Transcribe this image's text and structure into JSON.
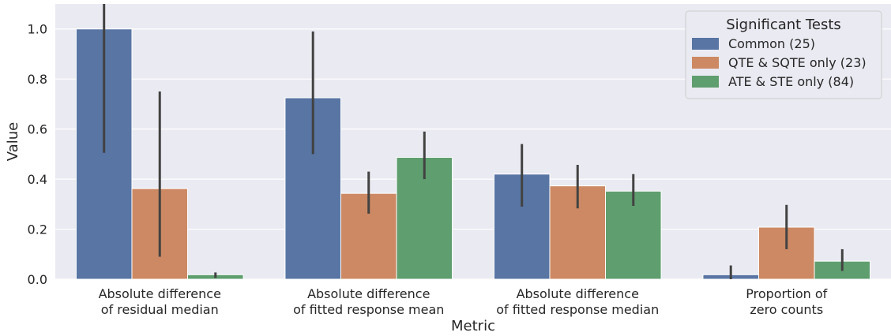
{
  "chart_data": {
    "type": "bar",
    "xlabel": "Metric",
    "ylabel": "Value",
    "ylim": [
      0,
      1.1
    ],
    "yticks": [
      0.0,
      0.2,
      0.4,
      0.6,
      0.8,
      1.0
    ],
    "ytick_labels": [
      "0.0",
      "0.2",
      "0.4",
      "0.6",
      "0.8",
      "1.0"
    ],
    "grid": true,
    "categories": [
      [
        "Absolute difference",
        "of residual median"
      ],
      [
        "Absolute difference",
        "of fitted response mean"
      ],
      [
        "Absolute difference",
        "of fitted response median"
      ],
      [
        "Proportion of",
        "zero counts"
      ]
    ],
    "series": [
      {
        "name": "Common (25)",
        "color": "#5875a4",
        "values": [
          1.0,
          0.725,
          0.42,
          0.018
        ],
        "error_low": [
          0.505,
          0.5,
          0.29,
          0.0
        ],
        "error_high": [
          1.1,
          0.99,
          0.54,
          0.055
        ]
      },
      {
        "name": "QTE & SQTE only (23)",
        "color": "#cc8963",
        "values": [
          0.362,
          0.343,
          0.373,
          0.208
        ],
        "error_low": [
          0.09,
          0.262,
          0.283,
          0.12
        ],
        "error_high": [
          0.75,
          0.43,
          0.457,
          0.297
        ]
      },
      {
        "name": "ATE & STE only (84)",
        "color": "#5f9e6e",
        "values": [
          0.018,
          0.487,
          0.352,
          0.072
        ],
        "error_low": [
          0.005,
          0.4,
          0.293,
          0.033
        ],
        "error_high": [
          0.027,
          0.59,
          0.42,
          0.12
        ]
      }
    ],
    "legend": {
      "title": "Significant Tests",
      "position": "top-right"
    }
  }
}
